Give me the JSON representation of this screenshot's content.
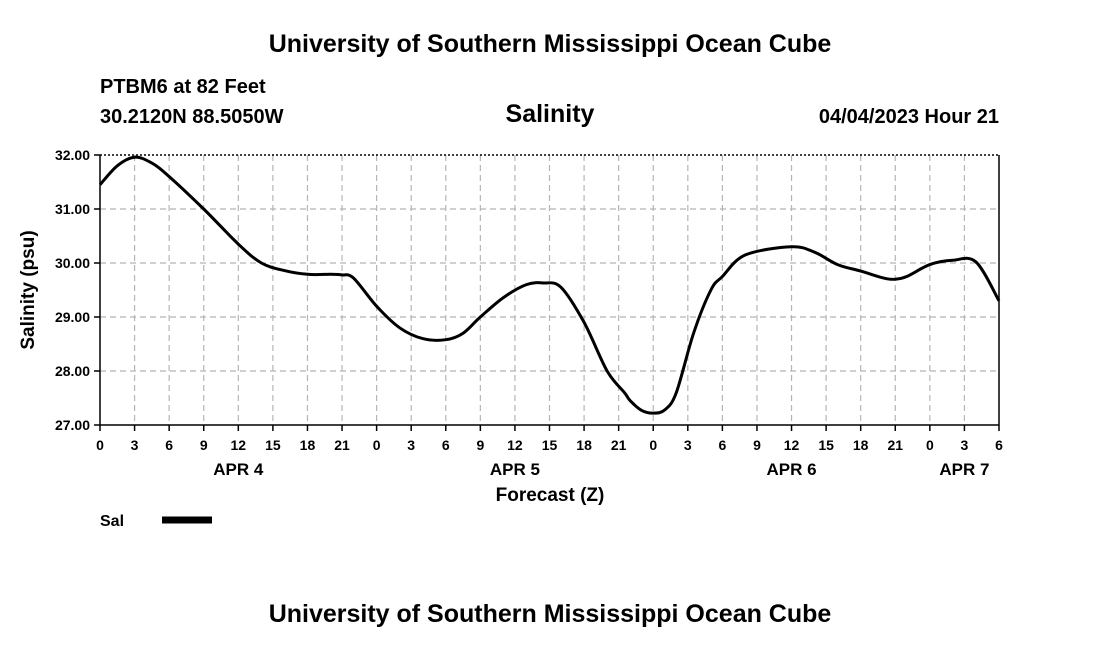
{
  "header": {
    "title": "University of Southern Mississippi Ocean Cube",
    "station": "PTBM6 at 82 Feet",
    "coords": "30.2120N  88.5050W",
    "timestamp": "04/04/2023 Hour 21"
  },
  "footer": {
    "title": "University of Southern Mississippi Ocean Cube"
  },
  "legend": {
    "label": "Sal",
    "color": "#000000"
  },
  "chart_data": {
    "type": "line",
    "title": "Salinity",
    "xlabel": "Forecast (Z)",
    "ylabel": "Salinity (psu)",
    "x_unit": "hours from 2023-04-04 00Z",
    "xlim": [
      0,
      78
    ],
    "ylim": [
      27,
      32
    ],
    "grid": true,
    "legend_position": "bottom-left",
    "y_ticks": [
      "27.00",
      "28.00",
      "29.00",
      "30.00",
      "31.00",
      "32.00"
    ],
    "x_tick_labels": [
      "0",
      "3",
      "6",
      "9",
      "12",
      "15",
      "18",
      "21",
      "0",
      "3",
      "6",
      "9",
      "12",
      "15",
      "18",
      "21",
      "0",
      "3",
      "6",
      "9",
      "12",
      "15",
      "18",
      "21",
      "0",
      "3",
      "6"
    ],
    "day_labels": [
      {
        "label": "APR 4",
        "hour": 12
      },
      {
        "label": "APR 5",
        "hour": 36
      },
      {
        "label": "APR 6",
        "hour": 60
      },
      {
        "label": "APR 7",
        "hour": 75
      }
    ],
    "series": [
      {
        "name": "Sal",
        "x": [
          0,
          1.5,
          3,
          4.5,
          6,
          9,
          12,
          14,
          16,
          18,
          20,
          21,
          22,
          24,
          26,
          28,
          30,
          31.5,
          33,
          35,
          37,
          38.5,
          40,
          42,
          44,
          45.5,
          46,
          47,
          48,
          49,
          50,
          51.5,
          53,
          54,
          56,
          60,
          62,
          64,
          66,
          68,
          69,
          70,
          72,
          74,
          76,
          78
        ],
        "values": [
          31.45,
          31.8,
          31.96,
          31.85,
          31.6,
          31.0,
          30.35,
          30.0,
          29.86,
          29.79,
          29.79,
          29.78,
          29.72,
          29.2,
          28.8,
          28.6,
          28.58,
          28.7,
          29.0,
          29.36,
          29.6,
          29.63,
          29.55,
          28.9,
          28.0,
          27.6,
          27.45,
          27.27,
          27.22,
          27.28,
          27.6,
          28.7,
          29.5,
          29.75,
          30.15,
          30.3,
          30.2,
          29.97,
          29.85,
          29.72,
          29.7,
          29.75,
          29.97,
          30.05,
          30.02,
          29.3
        ]
      }
    ]
  }
}
